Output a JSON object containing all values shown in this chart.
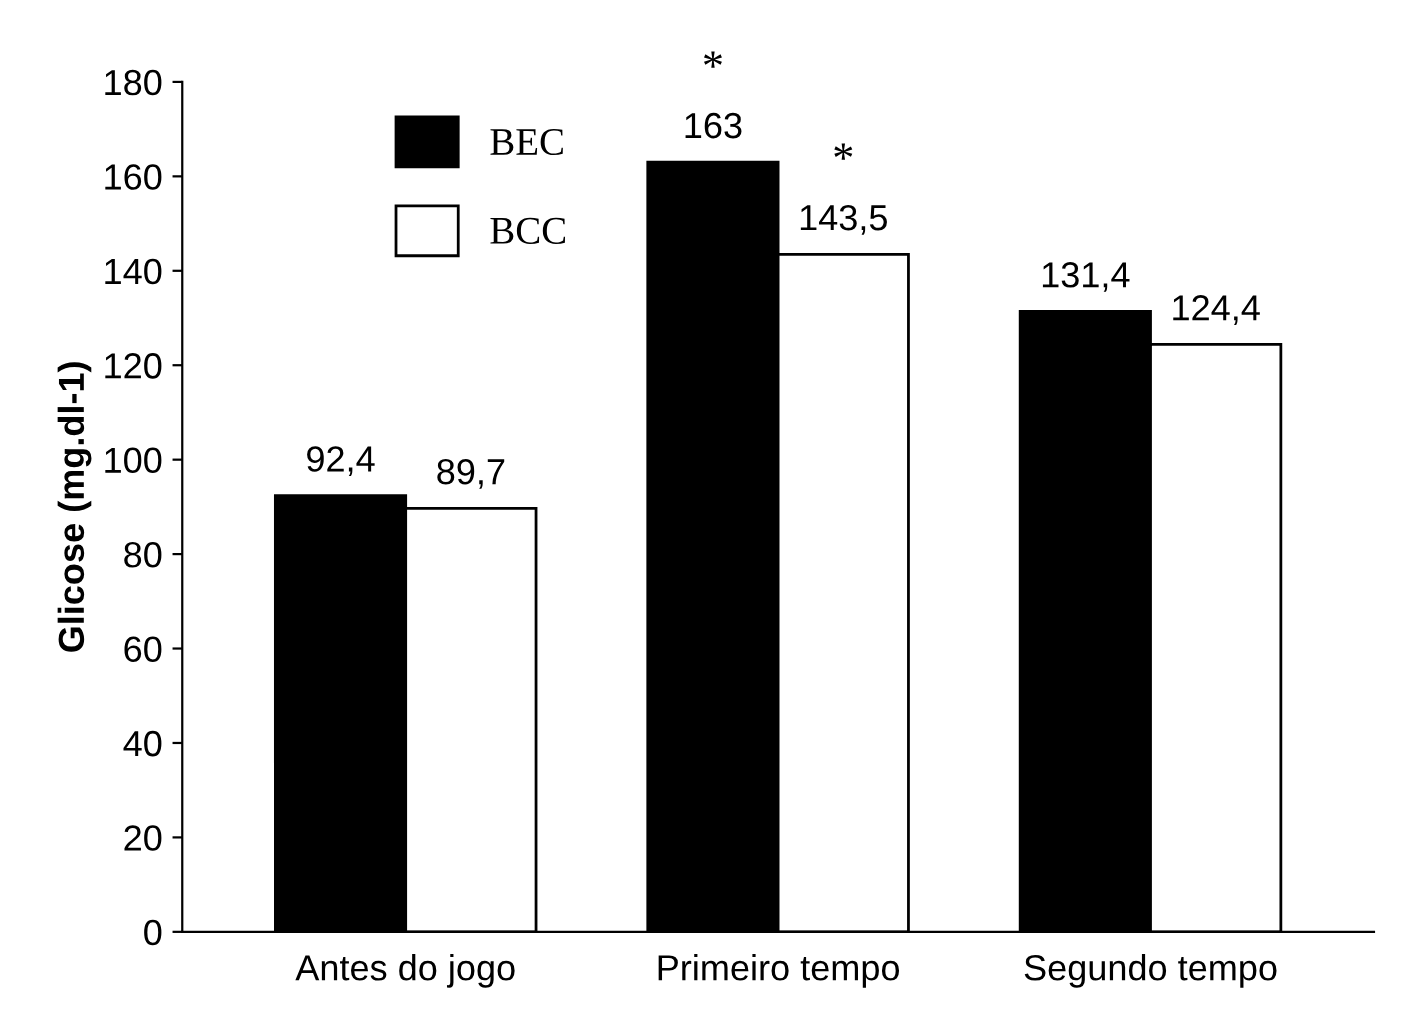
{
  "chart_data": {
    "type": "bar",
    "ylabel": "Glicose (mg.dl-1)",
    "categories": [
      "Antes do jogo",
      "Primeiro tempo",
      "Segundo tempo"
    ],
    "series": [
      {
        "name": "BEC",
        "color": "#000000",
        "values": [
          92.4,
          163,
          131.4
        ],
        "value_labels": [
          "92,4",
          "163",
          "131,4"
        ]
      },
      {
        "name": "BCC",
        "color": "#ffffff",
        "values": [
          89.7,
          143.5,
          124.4
        ],
        "value_labels": [
          "89,7",
          "143,5",
          "124,4"
        ]
      }
    ],
    "ylim": [
      0,
      180
    ],
    "yticks": [
      0,
      20,
      40,
      60,
      80,
      100,
      120,
      140,
      160,
      180
    ],
    "annotations": [
      {
        "text": "*",
        "x": "Primeiro tempo",
        "y": 163
      },
      {
        "text": "*",
        "x": "Primeiro tempo",
        "y": 143.5
      }
    ],
    "legend": "top left",
    "grid": false
  }
}
